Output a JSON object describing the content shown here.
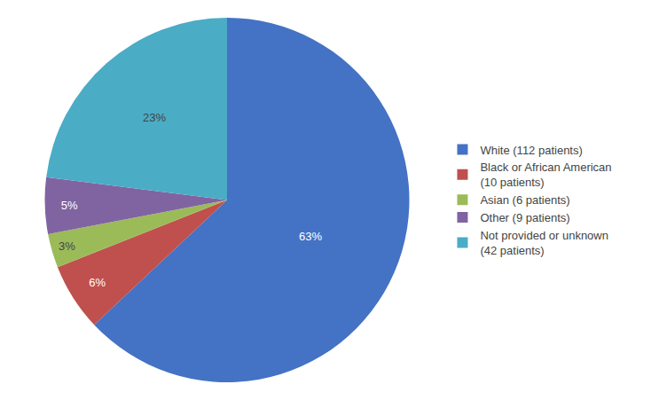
{
  "chart_data": {
    "type": "pie",
    "categories": [
      "White (112 patients)",
      "Black or African American\n(10 patients)",
      "Asian (6 patients)",
      "Other (9 patients)",
      "Not provided or unknown\n(42 patients)"
    ],
    "values": [
      63,
      6,
      3,
      5,
      23
    ],
    "value_labels": [
      "63%",
      "6%",
      "3%",
      "5%",
      "23%"
    ],
    "data_labels": true,
    "colors": [
      "#4472C4",
      "#C0504D",
      "#9BBB59",
      "#8064A2",
      "#4BACC6"
    ],
    "legend": "right"
  }
}
